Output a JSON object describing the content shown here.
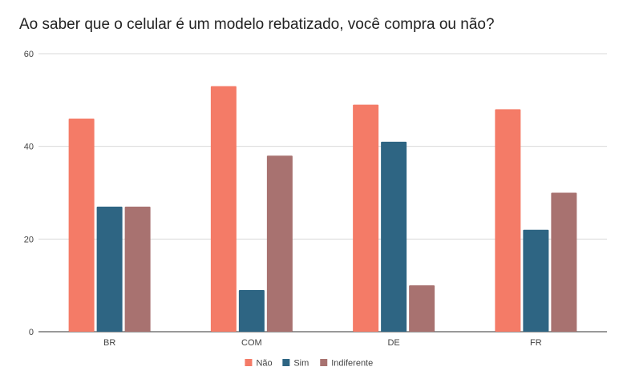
{
  "chart_data": {
    "type": "bar",
    "title": "Ao saber que o celular é um modelo rebatizado, você compra ou não?",
    "xlabel": "",
    "ylabel": "",
    "categories": [
      "BR",
      "COM",
      "DE",
      "FR"
    ],
    "series": [
      {
        "name": "Não",
        "values": [
          46,
          53,
          49,
          48
        ],
        "color": "#f47b67"
      },
      {
        "name": "Sim",
        "values": [
          27,
          9,
          41,
          22
        ],
        "color": "#2e6583"
      },
      {
        "name": "Indiferente",
        "values": [
          27,
          38,
          10,
          30
        ],
        "color": "#a87270"
      }
    ],
    "ylim": [
      0,
      60
    ],
    "yticks": [
      "0",
      "20",
      "40",
      "60"
    ],
    "grid": true,
    "legend_position": "bottom-center"
  }
}
